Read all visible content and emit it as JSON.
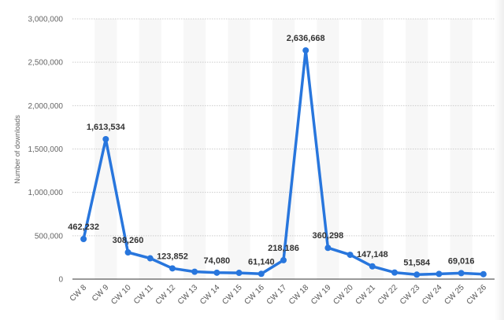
{
  "chart_data": {
    "type": "line",
    "title": "",
    "xlabel": "",
    "ylabel": "Number of downloads",
    "ylim": [
      0,
      3000000
    ],
    "yticks": [
      0,
      500000,
      1000000,
      1500000,
      2000000,
      2500000,
      3000000
    ],
    "ytick_labels": [
      "0",
      "500,000",
      "1,000,000",
      "1,500,000",
      "2,000,000",
      "2,500,000",
      "3,000,000"
    ],
    "grid": true,
    "legend": "none",
    "categories": [
      "CW 8",
      "CW 9",
      "CW 10",
      "CW 11",
      "CW 12",
      "CW 13",
      "CW 14",
      "CW 15",
      "CW 16",
      "CW 17",
      "CW 18",
      "CW 19",
      "CW 20",
      "CW 21",
      "CW 22",
      "CW 23",
      "CW 24",
      "CW 25",
      "CW 26"
    ],
    "series": [
      {
        "name": "Downloads",
        "color": "#2876dd",
        "values": [
          462232,
          1613534,
          308260,
          240000,
          123852,
          85000,
          74080,
          72000,
          61140,
          218186,
          2636668,
          360298,
          280000,
          147148,
          76000,
          51584,
          60000,
          69016,
          57000
        ],
        "labels": [
          "462,232",
          "1,613,534",
          "308,260",
          "",
          "123,852",
          "",
          "74,080",
          "",
          "61,140",
          "218,186",
          "2,636,668",
          "360,298",
          "",
          "147,148",
          "",
          "51,584",
          "",
          "69,016",
          ""
        ]
      }
    ]
  }
}
